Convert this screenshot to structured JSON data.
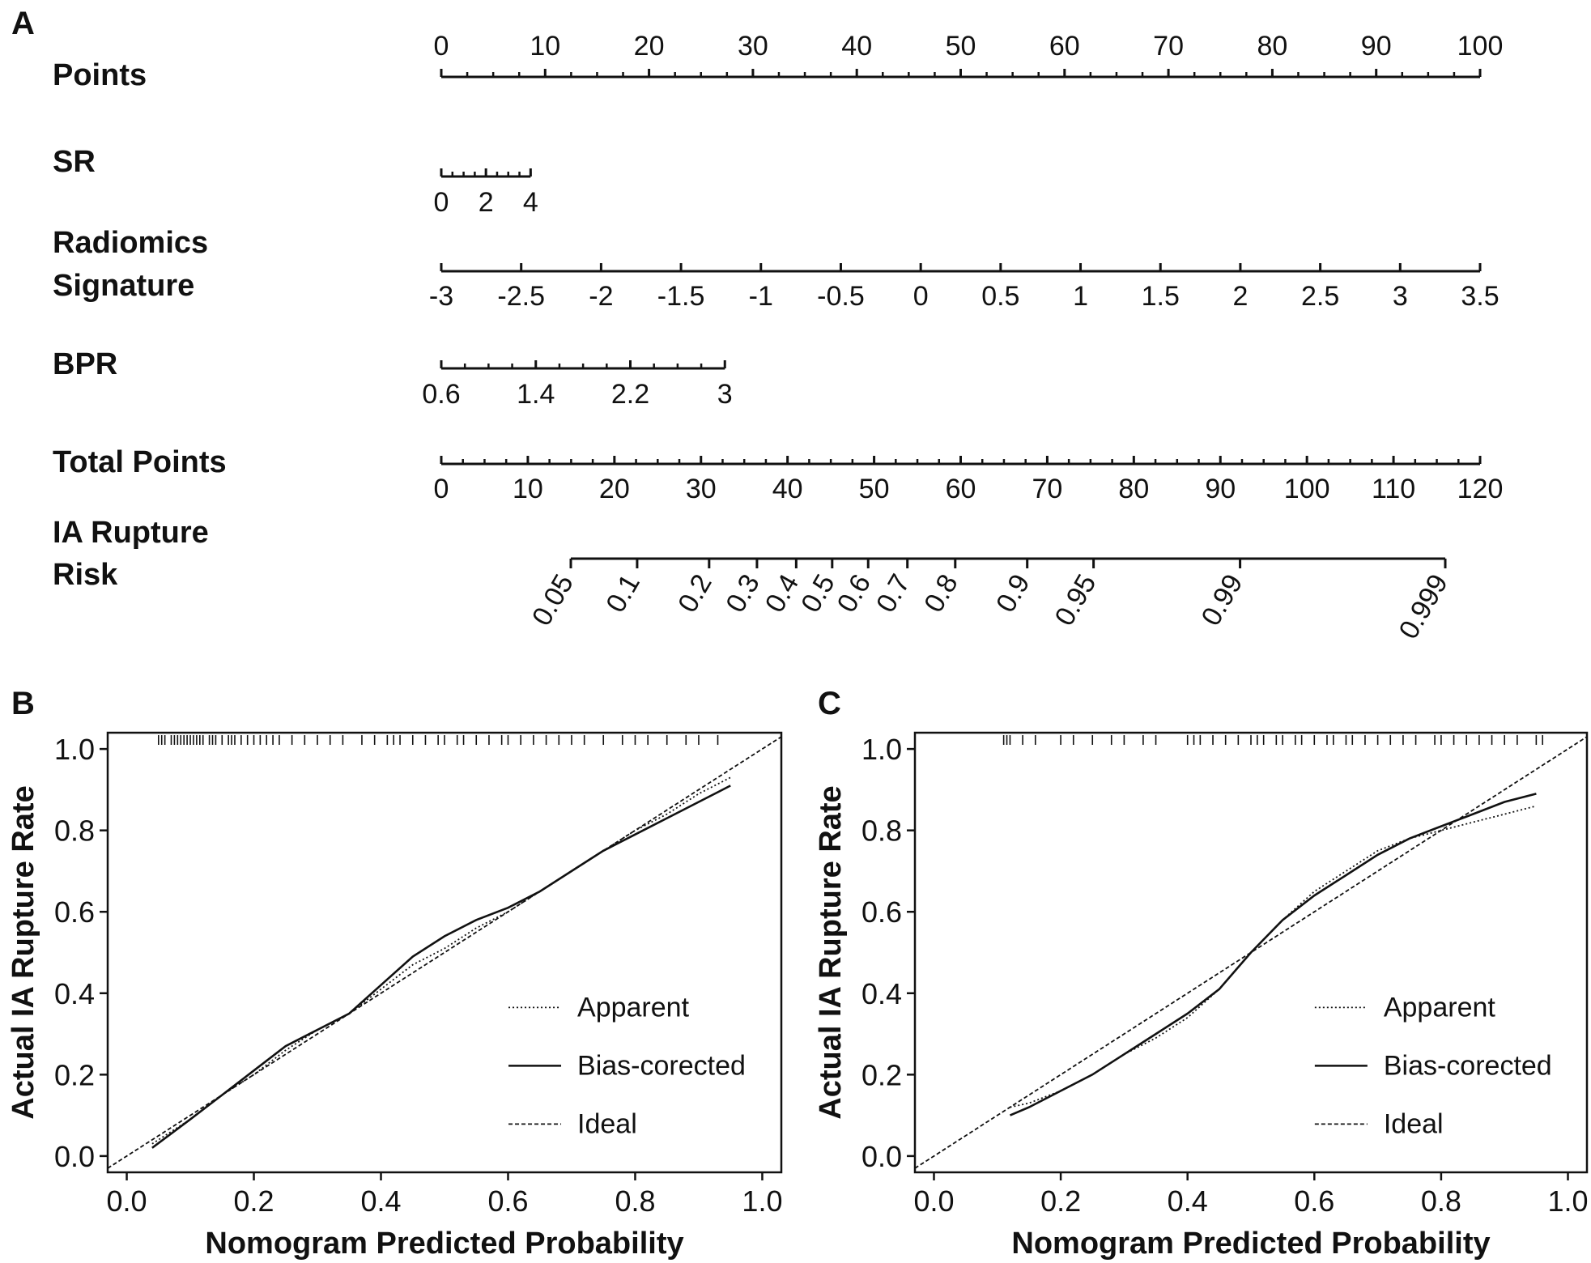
{
  "panel_a": {
    "letter": "A",
    "rows": [
      {
        "id": "points",
        "label_lines": [
          "Points"
        ],
        "labeled": [
          0,
          10,
          20,
          30,
          40,
          50,
          60,
          70,
          80,
          90,
          100
        ],
        "label_text": [
          "0",
          "10",
          "20",
          "30",
          "40",
          "50",
          "60",
          "70",
          "80",
          "90",
          "100"
        ],
        "minor_step": 2.5,
        "label_side": "above"
      },
      {
        "id": "sr",
        "label_lines": [
          "SR"
        ],
        "labeled": [
          0,
          2,
          4
        ],
        "label_text": [
          "0",
          "2",
          "4"
        ],
        "min": 0,
        "max": 4,
        "minor_step": 0.5,
        "label_side": "below"
      },
      {
        "id": "radiomics",
        "label_lines": [
          "Radiomics",
          "Signature"
        ],
        "labeled": [
          -3,
          -2.5,
          -2,
          -1.5,
          -1,
          -0.5,
          0,
          0.5,
          1,
          1.5,
          2,
          2.5,
          3,
          3.5
        ],
        "label_text": [
          "-3",
          "-2.5",
          "-2",
          "-1.5",
          "-1",
          "-0.5",
          "0",
          "0.5",
          "1",
          "1.5",
          "2",
          "2.5",
          "3",
          "3.5"
        ],
        "min": -3,
        "max": 3.5,
        "label_side": "below"
      },
      {
        "id": "bpr",
        "label_lines": [
          "BPR"
        ],
        "labeled": [
          0.6,
          1.4,
          2.2,
          3
        ],
        "label_text": [
          "0.6",
          "1.4",
          "2.2",
          "3"
        ],
        "min": 0.6,
        "max": 3,
        "minor_step": 0.2,
        "label_side": "below"
      },
      {
        "id": "total",
        "label_lines": [
          "Total Points"
        ],
        "labeled": [
          0,
          10,
          20,
          30,
          40,
          50,
          60,
          70,
          80,
          90,
          100,
          110,
          120
        ],
        "label_text": [
          "0",
          "10",
          "20",
          "30",
          "40",
          "50",
          "60",
          "70",
          "80",
          "90",
          "100",
          "110",
          "120"
        ],
        "min": 0,
        "max": 120,
        "minor_step": 2.5,
        "label_side": "below"
      },
      {
        "id": "risk",
        "label_lines": [
          "IA Rupture",
          "Risk"
        ],
        "labeled": [
          0.05,
          0.1,
          0.2,
          0.3,
          0.4,
          0.5,
          0.6,
          0.7,
          0.8,
          0.9,
          0.95,
          0.99,
          0.999
        ],
        "label_text": [
          "0.05",
          "0.1",
          "0.2",
          "0.3",
          "0.4",
          "0.5",
          "0.6",
          "0.7",
          "0.8",
          "0.9",
          "0.95",
          "0.99",
          "0.999"
        ],
        "label_side": "below-rotated"
      }
    ]
  },
  "chart_data": [
    {
      "panel": "B",
      "type": "line",
      "xlabel": "Nomogram Predicted Probability",
      "ylabel": "Actual IA Rupture Rate",
      "xlim": [
        -0.03,
        1.03
      ],
      "ylim": [
        -0.04,
        1.04
      ],
      "xticks": [
        0,
        0.2,
        0.4,
        0.6,
        0.8,
        1
      ],
      "xtick_labels": [
        "0.0",
        "0.2",
        "0.4",
        "0.6",
        "0.8",
        "1.0"
      ],
      "yticks": [
        0,
        0.2,
        0.4,
        0.6,
        0.8,
        1
      ],
      "ytick_labels": [
        "0.0",
        "0.2",
        "0.4",
        "0.6",
        "0.8",
        "1.0"
      ],
      "legend": {
        "position": "lower-right",
        "entries": [
          "Apparent",
          "Bias-corected",
          "Ideal"
        ]
      },
      "series": [
        {
          "name": "Apparent",
          "style": "dotted",
          "x": [
            0.04,
            0.1,
            0.15,
            0.2,
            0.25,
            0.3,
            0.35,
            0.4,
            0.45,
            0.5,
            0.55,
            0.6,
            0.65,
            0.7,
            0.75,
            0.8,
            0.85,
            0.9,
            0.95
          ],
          "y": [
            0.03,
            0.09,
            0.15,
            0.2,
            0.26,
            0.31,
            0.35,
            0.41,
            0.47,
            0.51,
            0.56,
            0.6,
            0.65,
            0.7,
            0.75,
            0.8,
            0.84,
            0.89,
            0.93
          ]
        },
        {
          "name": "Bias-corected",
          "style": "solid",
          "x": [
            0.04,
            0.1,
            0.15,
            0.2,
            0.25,
            0.3,
            0.35,
            0.4,
            0.45,
            0.5,
            0.55,
            0.6,
            0.65,
            0.7,
            0.75,
            0.8,
            0.85,
            0.9,
            0.95
          ],
          "y": [
            0.02,
            0.09,
            0.15,
            0.21,
            0.27,
            0.31,
            0.35,
            0.42,
            0.49,
            0.54,
            0.58,
            0.61,
            0.65,
            0.7,
            0.75,
            0.79,
            0.83,
            0.87,
            0.91
          ]
        },
        {
          "name": "Ideal",
          "style": "dashed",
          "x": [
            -0.03,
            1.03
          ],
          "y": [
            -0.03,
            1.03
          ]
        }
      ],
      "rug": [
        0.05,
        0.055,
        0.06,
        0.07,
        0.075,
        0.08,
        0.085,
        0.09,
        0.095,
        0.1,
        0.105,
        0.11,
        0.115,
        0.12,
        0.13,
        0.135,
        0.14,
        0.15,
        0.16,
        0.165,
        0.17,
        0.18,
        0.19,
        0.2,
        0.21,
        0.22,
        0.23,
        0.24,
        0.26,
        0.28,
        0.3,
        0.32,
        0.34,
        0.37,
        0.39,
        0.41,
        0.42,
        0.43,
        0.45,
        0.47,
        0.49,
        0.5,
        0.52,
        0.53,
        0.55,
        0.57,
        0.59,
        0.6,
        0.62,
        0.64,
        0.66,
        0.68,
        0.7,
        0.72,
        0.75,
        0.78,
        0.8,
        0.82,
        0.85,
        0.88,
        0.9,
        0.93
      ]
    },
    {
      "panel": "C",
      "type": "line",
      "xlabel": "Nomogram Predicted Probability",
      "ylabel": "Actual IA Rupture Rate",
      "xlim": [
        -0.03,
        1.03
      ],
      "ylim": [
        -0.04,
        1.04
      ],
      "xticks": [
        0,
        0.2,
        0.4,
        0.6,
        0.8,
        1
      ],
      "xtick_labels": [
        "0.0",
        "0.2",
        "0.4",
        "0.6",
        "0.8",
        "1.0"
      ],
      "yticks": [
        0,
        0.2,
        0.4,
        0.6,
        0.8,
        1
      ],
      "ytick_labels": [
        "0.0",
        "0.2",
        "0.4",
        "0.6",
        "0.8",
        "1.0"
      ],
      "legend": {
        "position": "lower-right",
        "entries": [
          "Apparent",
          "Bias-corected",
          "Ideal"
        ]
      },
      "series": [
        {
          "name": "Apparent",
          "style": "dotted",
          "x": [
            0.12,
            0.15,
            0.2,
            0.25,
            0.3,
            0.35,
            0.4,
            0.45,
            0.5,
            0.55,
            0.6,
            0.65,
            0.7,
            0.75,
            0.8,
            0.85,
            0.9,
            0.95
          ],
          "y": [
            0.12,
            0.13,
            0.16,
            0.2,
            0.25,
            0.29,
            0.34,
            0.41,
            0.5,
            0.58,
            0.65,
            0.7,
            0.75,
            0.78,
            0.8,
            0.82,
            0.84,
            0.86
          ]
        },
        {
          "name": "Bias-corected",
          "style": "solid",
          "x": [
            0.12,
            0.15,
            0.2,
            0.25,
            0.3,
            0.35,
            0.4,
            0.45,
            0.5,
            0.55,
            0.6,
            0.65,
            0.7,
            0.75,
            0.8,
            0.85,
            0.9,
            0.95
          ],
          "y": [
            0.1,
            0.12,
            0.16,
            0.2,
            0.25,
            0.3,
            0.35,
            0.41,
            0.5,
            0.58,
            0.64,
            0.69,
            0.74,
            0.78,
            0.81,
            0.84,
            0.87,
            0.89
          ]
        },
        {
          "name": "Ideal",
          "style": "dashed",
          "x": [
            -0.03,
            1.03
          ],
          "y": [
            -0.03,
            1.03
          ]
        }
      ],
      "rug": [
        0.11,
        0.115,
        0.12,
        0.14,
        0.16,
        0.2,
        0.22,
        0.25,
        0.28,
        0.3,
        0.33,
        0.35,
        0.4,
        0.41,
        0.42,
        0.44,
        0.46,
        0.48,
        0.5,
        0.51,
        0.52,
        0.54,
        0.55,
        0.57,
        0.58,
        0.6,
        0.62,
        0.63,
        0.65,
        0.66,
        0.68,
        0.7,
        0.72,
        0.74,
        0.76,
        0.79,
        0.8,
        0.82,
        0.84,
        0.86,
        0.88,
        0.9,
        0.92,
        0.95,
        0.96
      ]
    }
  ]
}
